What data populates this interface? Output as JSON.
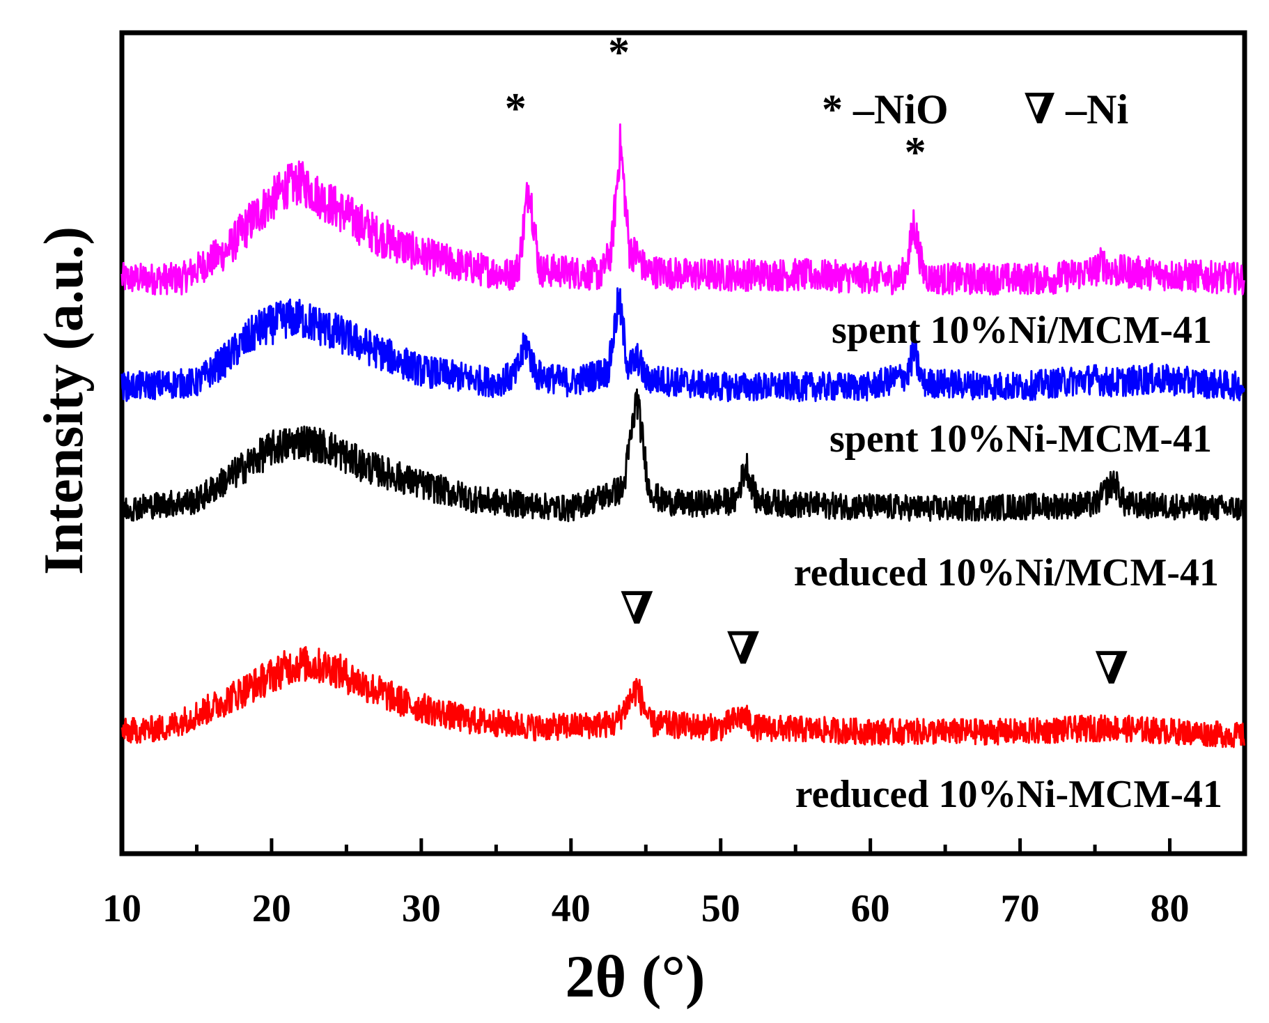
{
  "chart_data": {
    "type": "line",
    "title": "",
    "xlabel": "2θ (°)",
    "ylabel": "Intensity (a.u.)",
    "xlim": [
      10,
      85
    ],
    "x_ticks": [
      10,
      20,
      30,
      40,
      50,
      60,
      70,
      80
    ],
    "x_tick_labels": [
      "10",
      "20",
      "30",
      "40",
      "50",
      "60",
      "70",
      "80"
    ],
    "y_ticks_shown": false,
    "grid": false,
    "legend": {
      "placement": "top-right",
      "entries": [
        {
          "symbol": "*",
          "text": "–NiO"
        },
        {
          "symbol": "∇",
          "text": "–Ni"
        }
      ]
    },
    "series": [
      {
        "name": "spent 10%Ni/MCM-41",
        "color": "#ff00ff",
        "noise": 0.55,
        "points": [
          [
            10,
            0.0
          ],
          [
            14,
            0.0
          ],
          [
            17,
            0.35
          ],
          [
            19,
            0.8
          ],
          [
            21,
            1.15
          ],
          [
            22,
            1.2
          ],
          [
            23,
            1.05
          ],
          [
            25,
            0.8
          ],
          [
            27,
            0.55
          ],
          [
            30,
            0.3
          ],
          [
            33,
            0.15
          ],
          [
            36,
            0.05
          ],
          [
            36.5,
            0.15
          ],
          [
            37.2,
            1.2
          ],
          [
            37.9,
            0.1
          ],
          [
            39,
            0.1
          ],
          [
            42,
            0.05
          ],
          [
            42.7,
            0.35
          ],
          [
            43.3,
            1.7
          ],
          [
            43.9,
            0.35
          ],
          [
            44.4,
            0.3
          ],
          [
            45,
            0.1
          ],
          [
            48,
            0.05
          ],
          [
            55,
            0.05
          ],
          [
            62,
            0.0
          ],
          [
            62.5,
            0.2
          ],
          [
            62.9,
            0.7
          ],
          [
            63.5,
            0.1
          ],
          [
            64,
            0.0
          ],
          [
            72,
            0.0
          ],
          [
            75,
            0.1
          ],
          [
            75.5,
            0.2
          ],
          [
            76,
            0.1
          ],
          [
            80,
            0.05
          ],
          [
            85,
            0.0
          ]
        ],
        "baseline": 1.56,
        "markers": [
          {
            "symbol": "*",
            "x": 36.3,
            "h": 1.95
          },
          {
            "symbol": "*",
            "x": 43.2,
            "h": 2.65
          },
          {
            "symbol": "*",
            "x": 63.0,
            "h": 1.4
          }
        ]
      },
      {
        "name": "spent 10%Ni-MCM-41",
        "color": "#0000ff",
        "noise": 0.5,
        "points": [
          [
            10,
            0.0
          ],
          [
            15,
            0.05
          ],
          [
            17,
            0.35
          ],
          [
            19,
            0.7
          ],
          [
            21,
            0.85
          ],
          [
            22,
            0.85
          ],
          [
            24,
            0.7
          ],
          [
            27,
            0.45
          ],
          [
            30,
            0.2
          ],
          [
            35,
            0.05
          ],
          [
            36.3,
            0.15
          ],
          [
            37,
            0.55
          ],
          [
            37.7,
            0.15
          ],
          [
            40,
            0.05
          ],
          [
            42.5,
            0.2
          ],
          [
            43.2,
            1.1
          ],
          [
            43.8,
            0.25
          ],
          [
            44.5,
            0.35
          ],
          [
            45,
            0.1
          ],
          [
            50,
            0.0
          ],
          [
            60,
            0.0
          ],
          [
            62.5,
            0.15
          ],
          [
            62.9,
            0.45
          ],
          [
            63.5,
            0.05
          ],
          [
            70,
            0.0
          ],
          [
            75,
            0.1
          ],
          [
            76,
            0.05
          ],
          [
            79,
            0.1
          ],
          [
            85,
            0.0
          ]
        ],
        "baseline": 0.72,
        "markers": []
      },
      {
        "name": "reduced 10%Ni/MCM-41",
        "color": "#000000",
        "noise": 0.45,
        "points": [
          [
            10,
            0.0
          ],
          [
            15,
            0.1
          ],
          [
            18,
            0.5
          ],
          [
            20,
            0.75
          ],
          [
            22,
            0.85
          ],
          [
            24,
            0.75
          ],
          [
            26,
            0.55
          ],
          [
            30,
            0.3
          ],
          [
            34,
            0.1
          ],
          [
            40,
            0.0
          ],
          [
            43.5,
            0.25
          ],
          [
            44.4,
            1.4
          ],
          [
            45.2,
            0.25
          ],
          [
            46,
            0.1
          ],
          [
            48,
            0.05
          ],
          [
            51,
            0.1
          ],
          [
            51.7,
            0.55
          ],
          [
            52.4,
            0.1
          ],
          [
            55,
            0.05
          ],
          [
            65,
            0.0
          ],
          [
            75,
            0.05
          ],
          [
            76.3,
            0.35
          ],
          [
            77,
            0.05
          ],
          [
            85,
            0.0
          ]
        ],
        "baseline": -0.18,
        "markers": []
      },
      {
        "name": "reduced 10%Ni-MCM-41",
        "color": "#ff0000",
        "noise": 0.45,
        "points": [
          [
            10,
            0.0
          ],
          [
            13,
            0.05
          ],
          [
            16,
            0.3
          ],
          [
            19,
            0.6
          ],
          [
            21,
            0.8
          ],
          [
            22,
            0.85
          ],
          [
            24,
            0.8
          ],
          [
            26,
            0.6
          ],
          [
            29,
            0.35
          ],
          [
            33,
            0.15
          ],
          [
            38,
            0.05
          ],
          [
            43,
            0.1
          ],
          [
            44.4,
            0.55
          ],
          [
            45.3,
            0.1
          ],
          [
            50,
            0.05
          ],
          [
            51.5,
            0.2
          ],
          [
            52.3,
            0.05
          ],
          [
            60,
            0.0
          ],
          [
            70,
            0.0
          ],
          [
            76,
            0.05
          ],
          [
            85,
            -0.05
          ]
        ],
        "baseline": -2.1,
        "markers": [
          {
            "symbol": "∇",
            "x": 44.4,
            "h": 1.35
          },
          {
            "symbol": "∇",
            "x": 51.5,
            "h": 0.85
          },
          {
            "symbol": "∇",
            "x": 76.1,
            "h": 0.6
          }
        ]
      }
    ]
  }
}
